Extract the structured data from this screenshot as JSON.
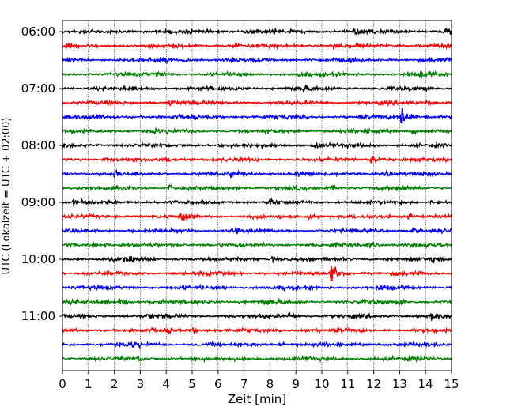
{
  "chart_data": {
    "type": "line",
    "title": "",
    "xlabel": "Zeit  [min]",
    "ylabel": "UTC (Lokalzeit = UTC + 02:00)",
    "xlim": [
      0,
      15
    ],
    "x_ticks": [
      "0",
      "1",
      "2",
      "3",
      "4",
      "5",
      "6",
      "7",
      "8",
      "9",
      "10",
      "11",
      "12",
      "13",
      "14",
      "15"
    ],
    "y_ticks": [
      "06:00",
      "07:00",
      "08:00",
      "09:00",
      "10:00",
      "11:00"
    ],
    "grid": "x",
    "trace_interval_min": 15,
    "colors": [
      "#000000",
      "#ff0000",
      "#0000ff",
      "#008000"
    ],
    "series": [
      {
        "start": "06:00",
        "color": "#000000",
        "events": [
          [
            7.05,
            0.5
          ],
          [
            11.25,
            0.4
          ],
          [
            14.8,
            0.6
          ]
        ]
      },
      {
        "start": "06:15",
        "color": "#ff0000",
        "events": [
          [
            6.6,
            0.3
          ],
          [
            10.4,
            0.4
          ]
        ]
      },
      {
        "start": "06:30",
        "color": "#0000ff",
        "events": [
          [
            3.6,
            0.3
          ],
          [
            4.7,
            0.3
          ]
        ]
      },
      {
        "start": "06:45",
        "color": "#008000",
        "events": [
          [
            3.6,
            0.3
          ],
          [
            9.1,
            0.3
          ],
          [
            13.8,
            0.3
          ]
        ]
      },
      {
        "start": "07:00",
        "color": "#000000",
        "events": [
          [
            8.6,
            0.3
          ],
          [
            9.2,
            0.4
          ]
        ]
      },
      {
        "start": "07:15",
        "color": "#ff0000",
        "events": [
          [
            4.1,
            0.4
          ],
          [
            14.0,
            0.3
          ]
        ]
      },
      {
        "start": "07:30",
        "color": "#0000ff",
        "events": [
          [
            13.05,
            1.6
          ],
          [
            14.0,
            0.3
          ]
        ]
      },
      {
        "start": "07:45",
        "color": "#008000",
        "events": [
          [
            3.5,
            0.3
          ],
          [
            13.5,
            0.3
          ]
        ]
      },
      {
        "start": "08:00",
        "color": "#000000",
        "events": [
          [
            9.7,
            0.4
          ]
        ]
      },
      {
        "start": "08:15",
        "color": "#ff0000",
        "events": [
          [
            1.6,
            0.3
          ],
          [
            4.0,
            0.3
          ],
          [
            11.9,
            0.6
          ]
        ]
      },
      {
        "start": "08:30",
        "color": "#0000ff",
        "events": [
          [
            2.0,
            0.3
          ],
          [
            6.5,
            0.4
          ],
          [
            9.0,
            0.3
          ],
          [
            12.5,
            0.3
          ]
        ]
      },
      {
        "start": "08:45",
        "color": "#008000",
        "events": [
          [
            4.1,
            0.4
          ],
          [
            10.3,
            0.3
          ],
          [
            12.9,
            0.4
          ]
        ]
      },
      {
        "start": "09:00",
        "color": "#000000",
        "events": [
          [
            0.4,
            0.3
          ],
          [
            8.0,
            0.4
          ],
          [
            14.2,
            0.3
          ]
        ]
      },
      {
        "start": "09:15",
        "color": "#ff0000",
        "events": [
          [
            4.6,
            0.4
          ],
          [
            9.5,
            0.3
          ],
          [
            13.3,
            0.4
          ]
        ]
      },
      {
        "start": "09:30",
        "color": "#0000ff",
        "events": [
          [
            6.6,
            0.3
          ],
          [
            13.5,
            0.3
          ]
        ]
      },
      {
        "start": "09:45",
        "color": "#008000",
        "events": [
          [
            1.2,
            0.3
          ],
          [
            11.8,
            0.5
          ]
        ]
      },
      {
        "start": "10:00",
        "color": "#000000",
        "events": [
          [
            2.4,
            0.3
          ],
          [
            8.05,
            0.4
          ],
          [
            14.2,
            0.3
          ]
        ]
      },
      {
        "start": "10:15",
        "color": "#ff0000",
        "events": [
          [
            10.35,
            1.8
          ]
        ]
      },
      {
        "start": "10:30",
        "color": "#0000ff",
        "events": [
          [
            6.1,
            0.3
          ],
          [
            12.2,
            0.3
          ]
        ]
      },
      {
        "start": "10:45",
        "color": "#008000",
        "events": [
          [
            2.2,
            0.4
          ],
          [
            7.6,
            0.3
          ],
          [
            13.0,
            0.3
          ]
        ]
      },
      {
        "start": "11:00",
        "color": "#000000",
        "events": [
          [
            3.3,
            0.3
          ],
          [
            8.7,
            0.4
          ],
          [
            14.2,
            0.4
          ]
        ]
      },
      {
        "start": "11:15",
        "color": "#ff0000",
        "events": [
          [
            4.0,
            0.4
          ],
          [
            5.0,
            0.3
          ],
          [
            9.1,
            0.3
          ]
        ]
      },
      {
        "start": "11:30",
        "color": "#0000ff",
        "events": [
          [
            2.7,
            0.3
          ],
          [
            8.3,
            0.3
          ]
        ]
      },
      {
        "start": "11:45",
        "color": "#008000",
        "events": [
          [
            2.9,
            0.3
          ],
          [
            13.8,
            0.3
          ]
        ]
      }
    ]
  }
}
